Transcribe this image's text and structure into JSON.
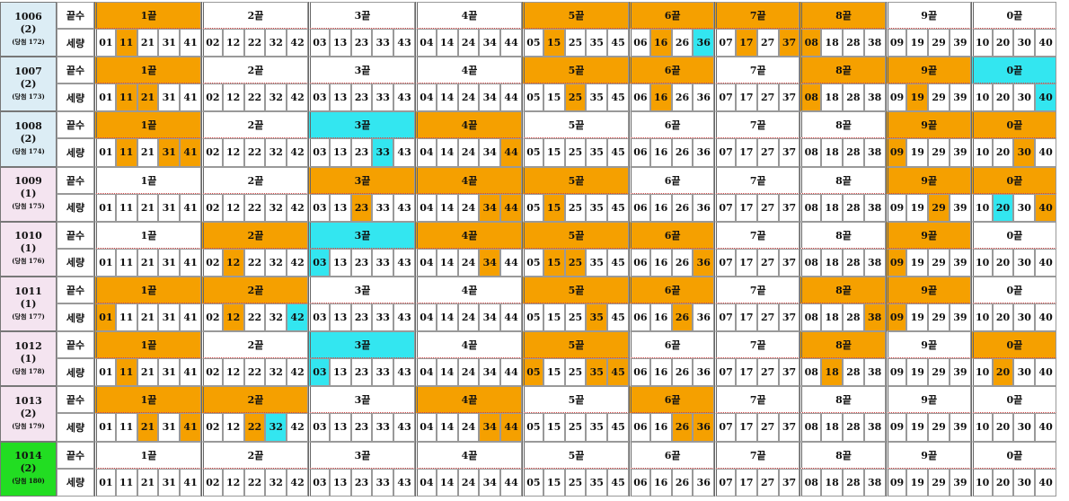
{
  "columns": {
    "header_label": "끝수",
    "number_label": "세량",
    "groups": [
      {
        "label": "1끝",
        "numbers": [
          "01",
          "11",
          "21",
          "31",
          "41"
        ]
      },
      {
        "label": "2끝",
        "numbers": [
          "02",
          "12",
          "22",
          "32",
          "42"
        ]
      },
      {
        "label": "3끝",
        "numbers": [
          "03",
          "13",
          "23",
          "33",
          "43"
        ]
      },
      {
        "label": "4끝",
        "numbers": [
          "04",
          "14",
          "24",
          "34",
          "44"
        ]
      },
      {
        "label": "5끝",
        "numbers": [
          "05",
          "15",
          "25",
          "35",
          "45"
        ]
      },
      {
        "label": "6끝",
        "numbers": [
          "06",
          "16",
          "26",
          "36"
        ]
      },
      {
        "label": "7끝",
        "numbers": [
          "07",
          "17",
          "27",
          "37"
        ]
      },
      {
        "label": "8끝",
        "numbers": [
          "08",
          "18",
          "28",
          "38"
        ]
      },
      {
        "label": "9끝",
        "numbers": [
          "09",
          "19",
          "29",
          "39"
        ]
      },
      {
        "label": "0끝",
        "numbers": [
          "10",
          "20",
          "30",
          "40"
        ]
      }
    ]
  },
  "rows": [
    {
      "draw": "1006",
      "count": "(2)",
      "note": "(당첨 172)",
      "left_color": "#dcedf5",
      "group_colors": {
        "0": "#f5a000",
        "4": "#f5a000",
        "5": "#f5a000",
        "6": "#f5a000",
        "7": "#f5a000"
      },
      "number_colors": {
        "11": "#f5a000",
        "15": "#f5a000",
        "16": "#f5a000",
        "36": "#33e6f0",
        "17": "#f5a000",
        "37": "#f5a000",
        "08": "#f5a000"
      }
    },
    {
      "draw": "1007",
      "count": "(2)",
      "note": "(당첨 173)",
      "left_color": "#dcedf5",
      "group_colors": {
        "0": "#f5a000",
        "4": "#f5a000",
        "5": "#f5a000",
        "7": "#f5a000",
        "8": "#f5a000",
        "9": "#33e6f0"
      },
      "number_colors": {
        "11": "#f5a000",
        "21": "#f5a000",
        "25": "#f5a000",
        "16": "#f5a000",
        "08": "#f5a000",
        "19": "#f5a000",
        "40": "#33e6f0"
      }
    },
    {
      "draw": "1008",
      "count": "(2)",
      "note": "(당첨 174)",
      "left_color": "#dcedf5",
      "group_colors": {
        "0": "#f5a000",
        "2": "#33e6f0",
        "3": "#f5a000",
        "8": "#f5a000",
        "9": "#f5a000"
      },
      "number_colors": {
        "11": "#f5a000",
        "31": "#f5a000",
        "41": "#f5a000",
        "33": "#33e6f0",
        "44": "#f5a000",
        "09": "#f5a000",
        "30": "#f5a000"
      }
    },
    {
      "draw": "1009",
      "count": "(1)",
      "note": "(당첨 175)",
      "left_color": "#f4e4f0",
      "group_colors": {
        "2": "#f5a000",
        "3": "#f5a000",
        "4": "#f5a000",
        "8": "#f5a000",
        "9": "#f5a000"
      },
      "number_colors": {
        "23": "#f5a000",
        "34": "#f5a000",
        "44": "#f5a000",
        "15": "#f5a000",
        "29": "#f5a000",
        "20": "#33e6f0",
        "40": "#f5a000"
      }
    },
    {
      "draw": "1010",
      "count": "(1)",
      "note": "(당첨 176)",
      "left_color": "#f4e4f0",
      "group_colors": {
        "1": "#f5a000",
        "2": "#33e6f0",
        "3": "#f5a000",
        "4": "#f5a000",
        "5": "#f5a000",
        "8": "#f5a000"
      },
      "number_colors": {
        "12": "#f5a000",
        "03": "#33e6f0",
        "34": "#f5a000",
        "15": "#f5a000",
        "25": "#f5a000",
        "36": "#f5a000",
        "09": "#f5a000"
      }
    },
    {
      "draw": "1011",
      "count": "(1)",
      "note": "(당첨 177)",
      "left_color": "#f4e4f0",
      "group_colors": {
        "0": "#f5a000",
        "1": "#f5a000",
        "4": "#f5a000",
        "5": "#f5a000",
        "7": "#f5a000",
        "8": "#f5a000"
      },
      "number_colors": {
        "01": "#f5a000",
        "12": "#f5a000",
        "42": "#33e6f0",
        "35": "#f5a000",
        "26": "#f5a000",
        "38": "#f5a000",
        "09": "#f5a000"
      }
    },
    {
      "draw": "1012",
      "count": "(1)",
      "note": "(당첨 178)",
      "left_color": "#f4e4f0",
      "group_colors": {
        "0": "#f5a000",
        "2": "#33e6f0",
        "4": "#f5a000",
        "7": "#f5a000",
        "9": "#f5a000"
      },
      "number_colors": {
        "11": "#f5a000",
        "03": "#33e6f0",
        "05": "#f5a000",
        "35": "#f5a000",
        "45": "#f5a000",
        "18": "#f5a000",
        "20": "#f5a000"
      }
    },
    {
      "draw": "1013",
      "count": "(2)",
      "note": "(당첨 179)",
      "left_color": "#f4e4f0",
      "group_colors": {
        "0": "#f5a000",
        "1": "#f5a000",
        "3": "#f5a000",
        "5": "#f5a000"
      },
      "number_colors": {
        "21": "#f5a000",
        "41": "#f5a000",
        "22": "#f5a000",
        "32": "#33e6f0",
        "34": "#f5a000",
        "44": "#f5a000",
        "26": "#f5a000",
        "36": "#f5a000"
      }
    },
    {
      "draw": "1014",
      "count": "(2)",
      "note": "(당첨 180)",
      "left_color": "#22dd22",
      "group_colors": {},
      "number_colors": {}
    }
  ]
}
